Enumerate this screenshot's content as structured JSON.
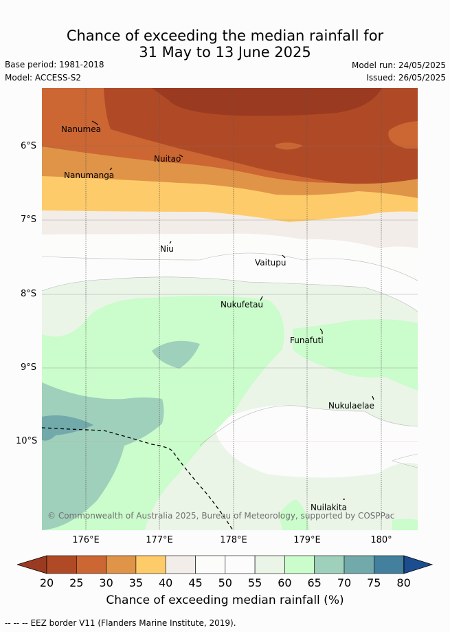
{
  "header": {
    "title_line1": "Chance of exceeding the median rainfall for",
    "title_line2": "31 May to 13 June 2025",
    "base_period": "Base period: 1981-2018",
    "model": "Model: ACCESS-S2",
    "model_run": "Model run: 24/05/2025",
    "issued": "Issued: 26/05/2025"
  },
  "map": {
    "lat_labels": [
      "6°S",
      "7°S",
      "8°S",
      "9°S",
      "10°S"
    ],
    "lon_labels": [
      "176°E",
      "177°E",
      "178°E",
      "179°E",
      "180°"
    ],
    "places": [
      "Nanumea",
      "Nuitao",
      "Nanumanga",
      "Niu",
      "Vaitupu",
      "Nukufetau",
      "Funafuti",
      "Nukulaelae",
      "Nuilakita"
    ],
    "credit": "© Commonwealth of Australia 2025, Bureau of Meteorology, supported by COSPPac"
  },
  "colorbar": {
    "ticks": [
      "20",
      "25",
      "30",
      "35",
      "40",
      "45",
      "50",
      "55",
      "60",
      "65",
      "70",
      "75",
      "80"
    ],
    "colors": [
      "#b04a26",
      "#cc6633",
      "#e09448",
      "#fecb6a",
      "#f2ede8",
      "#fcfdfb",
      "#fbfcfb",
      "#eaf5e8",
      "#cbfccb",
      "#9fd0bb",
      "#72a9aa",
      "#43809e"
    ],
    "under_color": "#9a3a20",
    "over_color": "#1c4e8f",
    "label": "Chance of exceeding median rainfall (%)"
  },
  "footer": {
    "legend_symbol": "--  --  --",
    "eez_text": "EEZ border V11 (Flanders Marine Institute, 2019)."
  }
}
